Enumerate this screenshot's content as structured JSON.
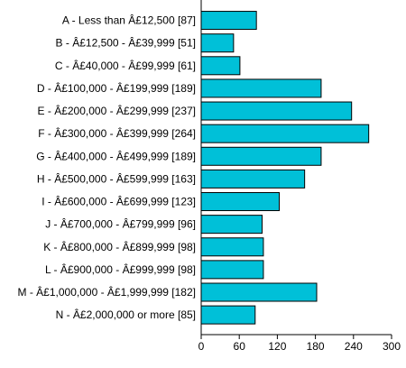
{
  "chart_data": {
    "type": "bar",
    "orientation": "horizontal",
    "categories": [
      "A - Less than Â£12,500 [87]",
      "B - Â£12,500 - Â£39,999 [51]",
      "C - Â£40,000 - Â£99,999 [61]",
      "D - Â£100,000 - Â£199,999 [189]",
      "E - Â£200,000 - Â£299,999 [237]",
      "F - Â£300,000 - Â£399,999 [264]",
      "G - Â£400,000 - Â£499,999 [189]",
      "H - Â£500,000 - Â£599,999 [163]",
      "I - Â£600,000 - Â£699,999 [123]",
      "J - Â£700,000 - Â£799,999 [96]",
      "K - Â£800,000 - Â£899,999 [98]",
      "L - Â£900,000 - Â£999,999 [98]",
      "M - Â£1,000,000 - Â£1,999,999 [182]",
      "N - Â£2,000,000 or more [85]"
    ],
    "values": [
      87,
      51,
      61,
      189,
      237,
      264,
      189,
      163,
      123,
      96,
      98,
      98,
      182,
      85
    ],
    "xlim": [
      0,
      300
    ],
    "xticks": [
      "0",
      "60",
      "120",
      "180",
      "240",
      "300"
    ],
    "grid": false,
    "bar_color": "#00c0d8",
    "title": "",
    "xlabel": "",
    "ylabel": ""
  }
}
